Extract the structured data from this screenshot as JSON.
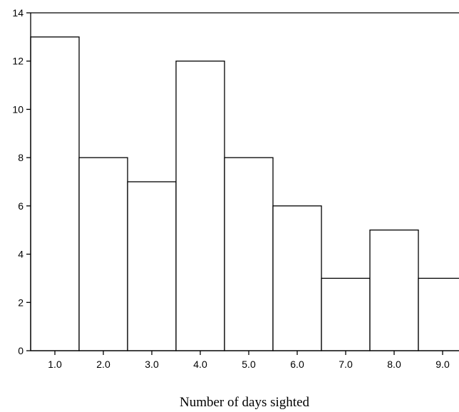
{
  "chart_data": {
    "type": "bar",
    "title": "",
    "xlabel": "Number of days sighted",
    "ylabel": "",
    "categories": [
      "1.0",
      "2.0",
      "3.0",
      "4.0",
      "5.0",
      "6.0",
      "7.0",
      "8.0",
      "9.0"
    ],
    "values": [
      13,
      8,
      7,
      12,
      8,
      6,
      3,
      5,
      3
    ],
    "ylim": [
      0,
      14
    ],
    "yticks": [
      "0",
      "2",
      "4",
      "6",
      "8",
      "10",
      "12",
      "14"
    ],
    "grid": false,
    "legend": "none",
    "colors": {
      "bar_fill": "#ffffff",
      "bar_stroke": "#000000"
    }
  }
}
